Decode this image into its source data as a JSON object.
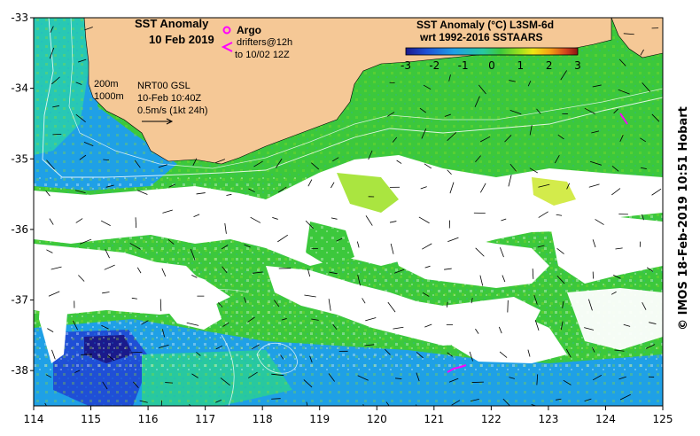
{
  "title": {
    "line1": "SST Anomaly",
    "line2": "10 Feb 2019"
  },
  "legend": {
    "argo_label": "Argo",
    "drifters_line1": "drifters@12h",
    "drifters_line2": "to 10/02 12Z",
    "argo_color": "#ff00ff",
    "drifter_color": "#ff00ff"
  },
  "colorbar": {
    "title_line1": "SST Anomaly (°C) L3SM-6d",
    "title_line2": "wrt 1992-2016 SSTAARS",
    "ticks": [
      "-3",
      "-2",
      "-1",
      "0",
      "1",
      "2",
      "3"
    ],
    "colors": [
      "#1a1a8c",
      "#1f4fd6",
      "#1fa0e6",
      "#28c8a0",
      "#3cc83c",
      "#9be01e",
      "#f0e614",
      "#f5a014",
      "#d2461e",
      "#8c1414"
    ]
  },
  "info": {
    "depth_200": "200m",
    "depth_1000": "1000m",
    "source": "NRT00 GSL",
    "time": "10-Feb 10:40Z",
    "scale": "0.5m/s (1kt 24h)"
  },
  "axes": {
    "x_ticks": [
      "114",
      "115",
      "116",
      "117",
      "118",
      "119",
      "120",
      "121",
      "122",
      "123",
      "124",
      "125"
    ],
    "y_ticks": [
      "-33",
      "-34",
      "-35",
      "-36",
      "-37",
      "-38"
    ],
    "lon_range": [
      114,
      125
    ],
    "lat_range": [
      -33,
      -38.5
    ]
  },
  "credit": "© IMOS 18-Feb-2019 10:51 Hobart",
  "colors": {
    "land": "#f5c896",
    "cloud": "#ffffff"
  }
}
